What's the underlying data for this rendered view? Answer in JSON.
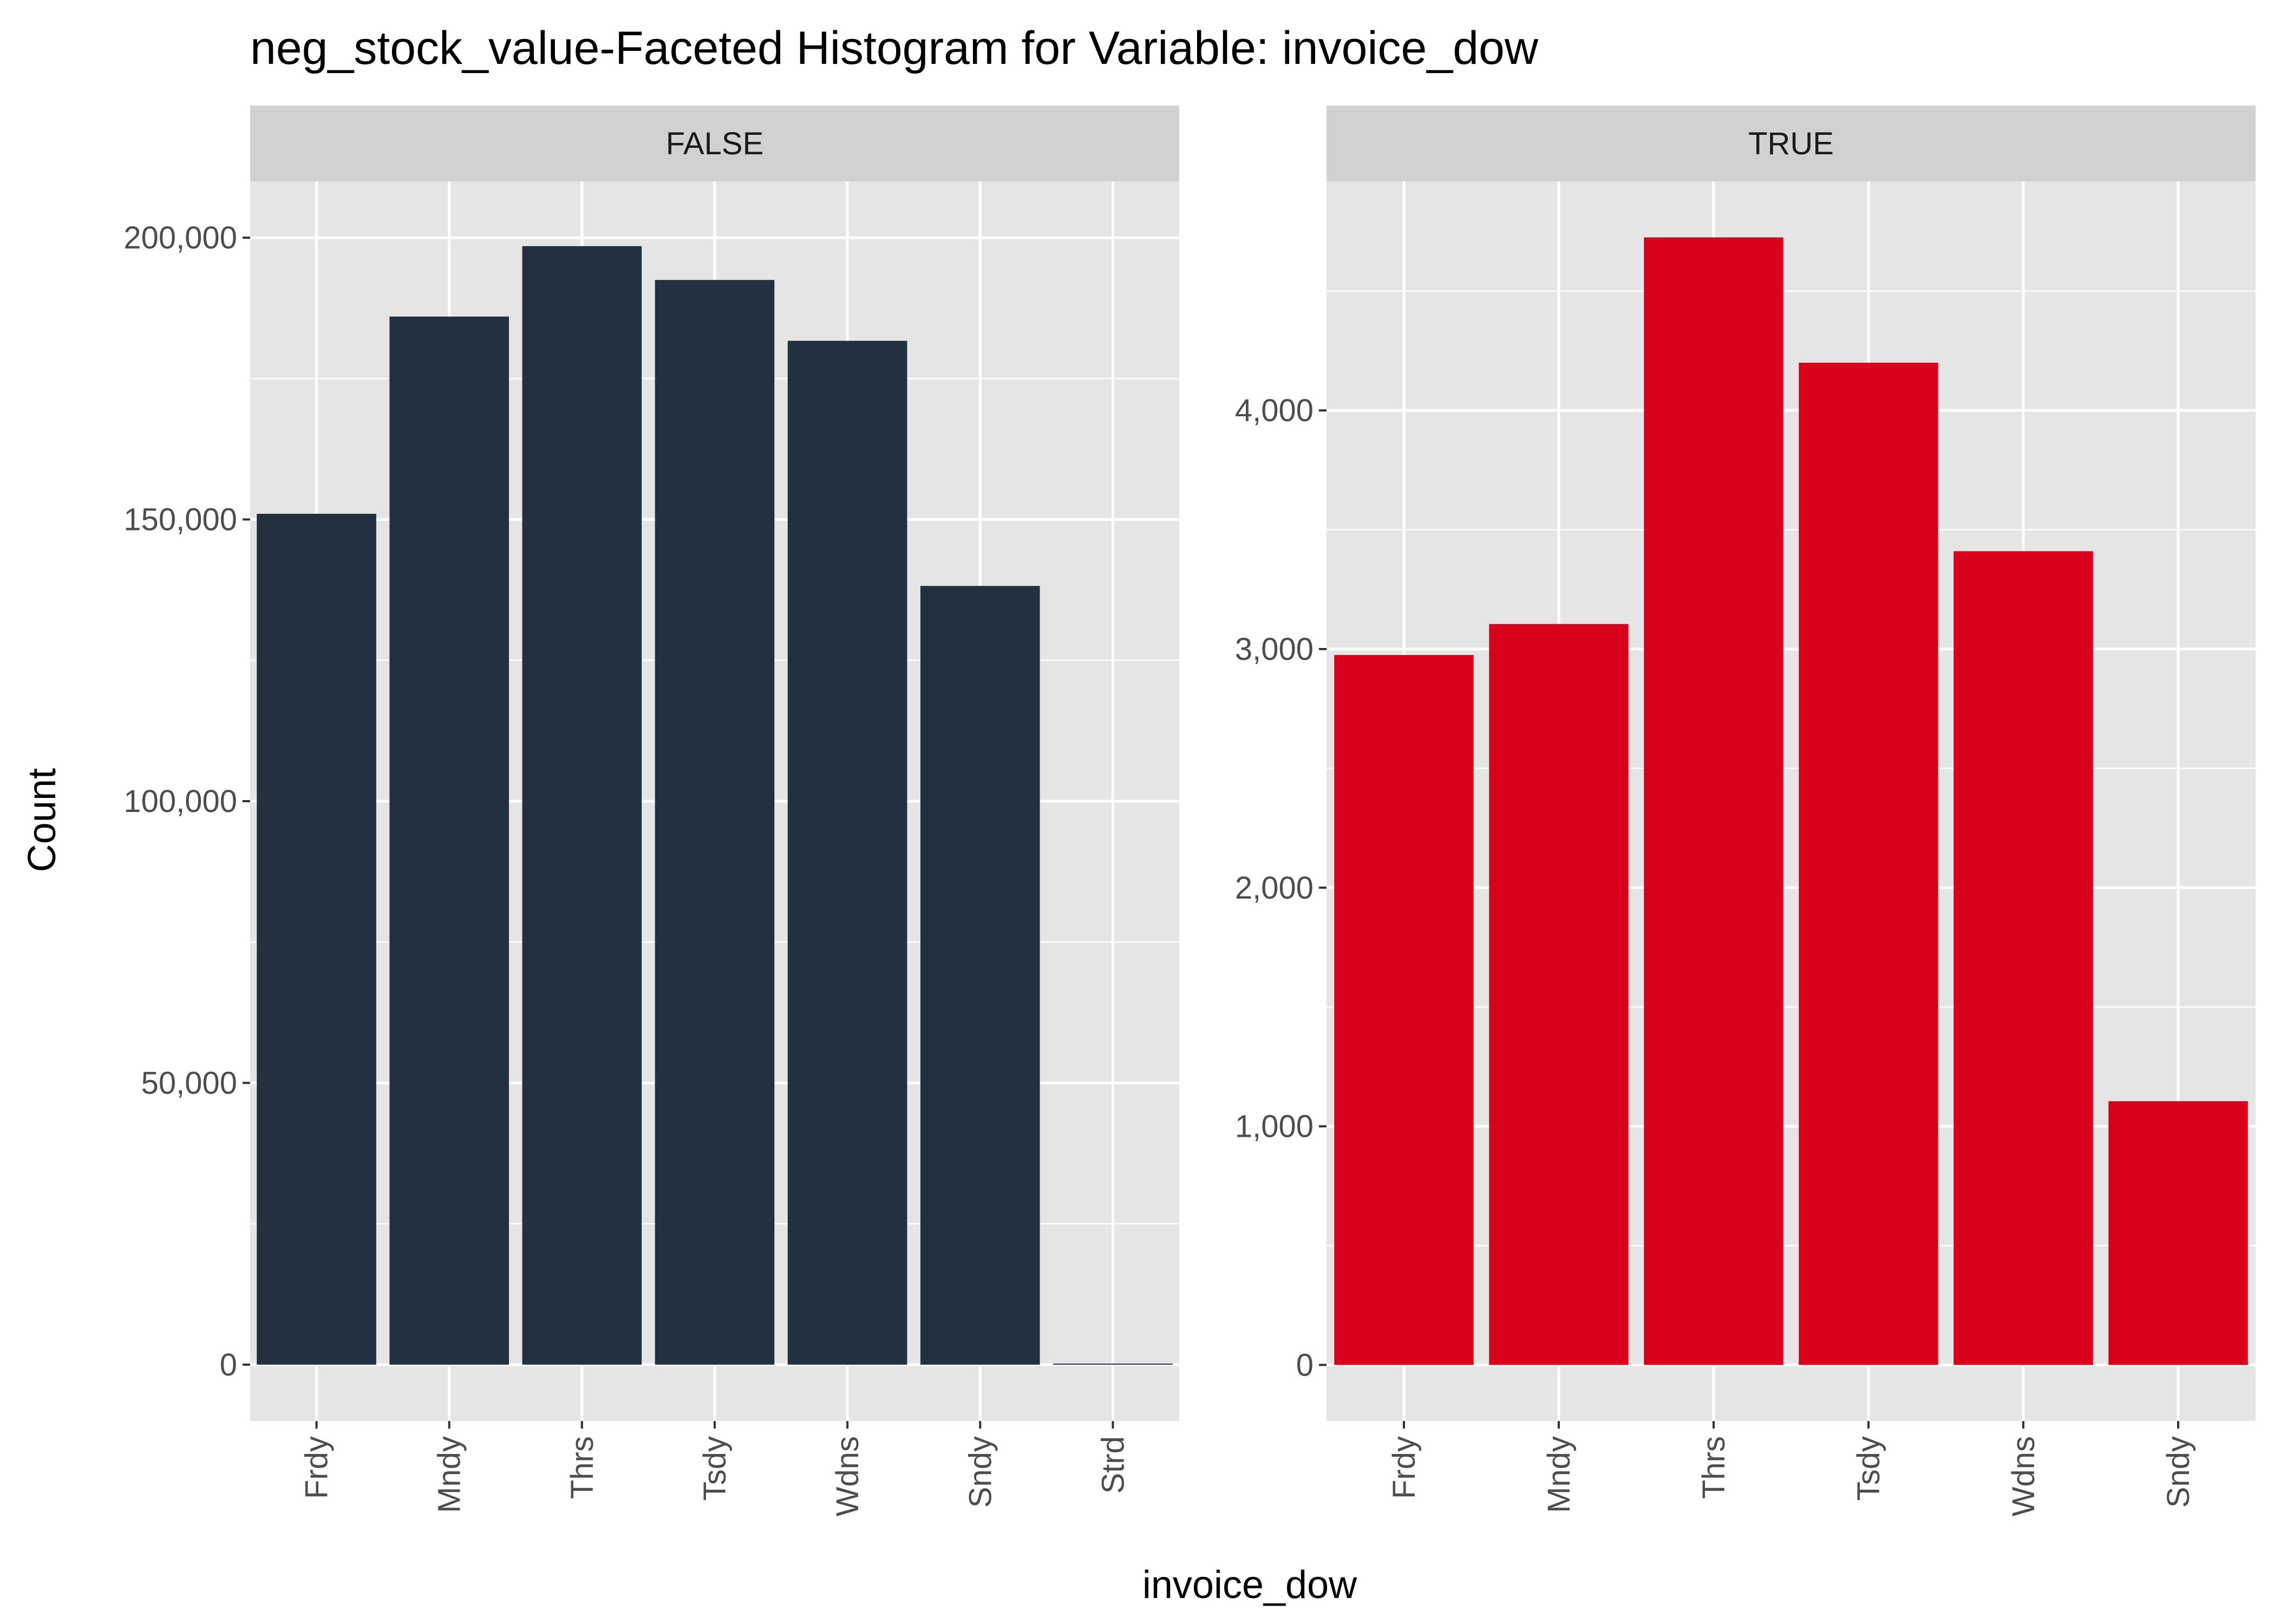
{
  "chart_data": {
    "type": "bar",
    "title": "neg_stock_value-Faceted Histogram for Variable: invoice_dow",
    "xlabel": "invoice_dow",
    "ylabel": "Count",
    "grid": true,
    "facets": [
      {
        "label": "FALSE",
        "color": "#233040",
        "categories": [
          "Frdy",
          "Mndy",
          "Thrs",
          "Tsdy",
          "Wdns",
          "Sndy",
          "Strd"
        ],
        "values": [
          151000,
          186000,
          198500,
          192500,
          181700,
          138200,
          150
        ],
        "ylim": [
          -10000,
          210000
        ],
        "yticks": [
          0,
          50000,
          100000,
          150000,
          200000
        ],
        "ytick_labels": [
          "0",
          "50,000",
          "100,000",
          "150,000",
          "200,000"
        ]
      },
      {
        "label": "TRUE",
        "color": "#d9001b",
        "categories": [
          "Frdy",
          "Mndy",
          "Thrs",
          "Tsdy",
          "Wdns",
          "Sndy"
        ],
        "values": [
          2975,
          3105,
          4725,
          4200,
          3410,
          1105
        ],
        "ylim": [
          -235,
          4960
        ],
        "yticks": [
          0,
          1000,
          2000,
          3000,
          4000
        ],
        "ytick_labels": [
          "0",
          "1,000",
          "2,000",
          "3,000",
          "4,000"
        ]
      }
    ]
  },
  "colors": {
    "panel_background": "#e5e5e5",
    "strip_background": "#d1d1d1",
    "gridline": "#ffffff",
    "tick": "#333333"
  }
}
